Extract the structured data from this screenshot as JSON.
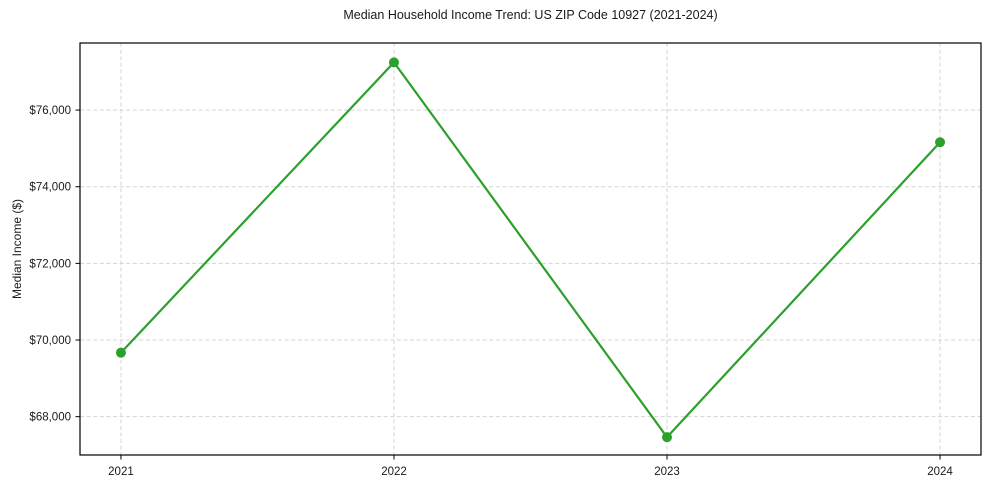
{
  "figure": {
    "background_color": "#ffffff",
    "text_color": "#1a1a1a"
  },
  "chart_data": {
    "type": "line",
    "title": "Median Household Income Trend: US ZIP Code 10927 (2021-2024)",
    "xlabel": "",
    "ylabel": "Median Income ($)",
    "x": [
      2021,
      2022,
      2023,
      2024
    ],
    "series": [
      {
        "name": "Median Household Income",
        "values": [
          69670,
          77245,
          67465,
          75160
        ],
        "color": "#2ca02c",
        "marker": "circle",
        "marker_size": 5,
        "line_width": 2.2
      }
    ],
    "xlim": [
      2020.85,
      2024.15
    ],
    "ylim": [
      67000,
      77750
    ],
    "xticks": [
      2021,
      2022,
      2023,
      2024
    ],
    "xtick_labels": [
      "2021",
      "2022",
      "2023",
      "2024"
    ],
    "yticks": [
      68000,
      70000,
      72000,
      74000,
      76000
    ],
    "ytick_labels": [
      "$68,000",
      "$70,000",
      "$72,000",
      "$74,000",
      "$76,000"
    ],
    "grid": true,
    "grid_color": "#d4d4d4",
    "grid_style": "dashed",
    "spine_color": "#000000",
    "legend_position": "none"
  }
}
